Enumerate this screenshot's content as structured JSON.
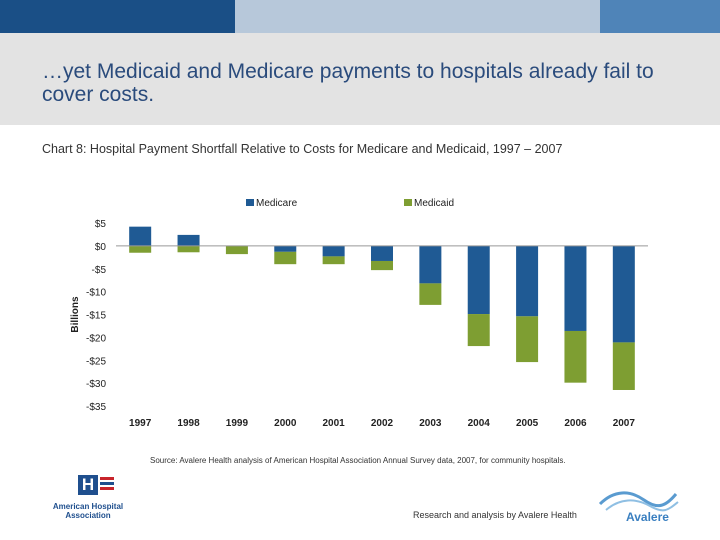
{
  "header": {
    "title": "…yet Medicaid and Medicare payments to hospitals already fail to cover costs.",
    "subtitle": "Chart 8: Hospital Payment Shortfall Relative to Costs for Medicare and Medicaid, 1997 – 2007"
  },
  "chart_data": {
    "type": "bar",
    "stacked": true,
    "title": "Chart 8: Hospital Payment Shortfall Relative to Costs for Medicare and Medicaid, 1997 – 2007",
    "xlabel": "",
    "ylabel": "Billions",
    "categories": [
      "1997",
      "1998",
      "1999",
      "2000",
      "2001",
      "2002",
      "2003",
      "2004",
      "2005",
      "2006",
      "2007"
    ],
    "series": [
      {
        "name": "Medicare",
        "color": "#1f5a94",
        "values": [
          4.2,
          2.4,
          0.0,
          -1.3,
          -2.3,
          -3.3,
          -8.2,
          -14.9,
          -15.4,
          -18.6,
          -21.1
        ]
      },
      {
        "name": "Medicaid",
        "color": "#7e9e32",
        "values": [
          -1.5,
          -1.4,
          -1.8,
          -2.7,
          -1.7,
          -2.0,
          -4.7,
          -7.0,
          -10.0,
          -11.3,
          -10.4
        ]
      }
    ],
    "ylim": [
      -35,
      5
    ],
    "yticks": [
      5,
      0,
      -5,
      -10,
      -15,
      -20,
      -25,
      -30,
      -35
    ],
    "ytick_labels": [
      "$5",
      "$0",
      "-$5",
      "-$10",
      "-$15",
      "-$20",
      "-$25",
      "-$30",
      "-$35"
    ],
    "legend_position": "top"
  },
  "footer": {
    "source": "Source: Avalere Health analysis of American Hospital Association Annual Survey data, 2007, for community hospitals.",
    "credit": "Research and analysis by Avalere Health"
  },
  "logos": {
    "aha_mark": "H",
    "aha_name": "American Hospital Association",
    "avalere_name": "Avalere"
  }
}
